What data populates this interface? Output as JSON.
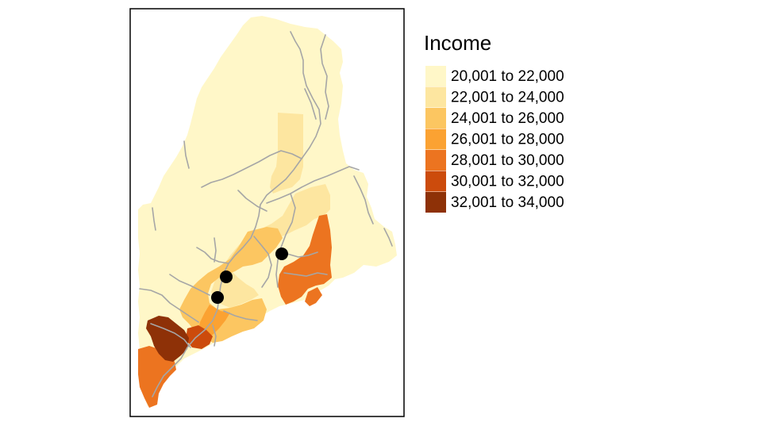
{
  "map": {
    "legend": {
      "title": "Income",
      "classes": [
        {
          "label": "20,001 to 22,000",
          "color": "#fff7c8"
        },
        {
          "label": "22,001 to 24,000",
          "color": "#fde6a0"
        },
        {
          "label": "24,001 to 26,000",
          "color": "#fcc661"
        },
        {
          "label": "26,001 to 28,000",
          "color": "#fba232"
        },
        {
          "label": "28,001 to 30,000",
          "color": "#ec7420"
        },
        {
          "label": "30,001 to 32,000",
          "color": "#cc4b0c"
        },
        {
          "label": "32,001 to 34,000",
          "color": "#8e3107"
        }
      ]
    },
    "frame_color": "#000000",
    "river_color": "#a6a6a6",
    "point_color": "#000000"
  }
}
